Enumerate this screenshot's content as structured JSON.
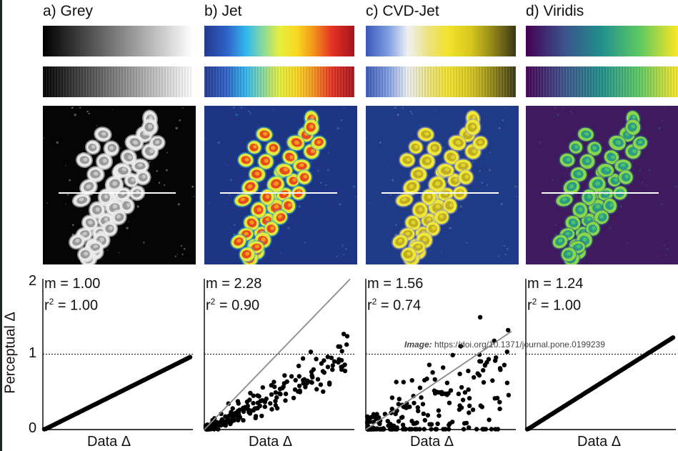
{
  "colors": {
    "frame": "#1f2427",
    "figure_bg": "#ffffff",
    "points": "#000000",
    "fit_line": "#8a8a8a",
    "reference_line": "#000000"
  },
  "panels": [
    {
      "title": "a) Grey",
      "colormap": "grey",
      "stats": {
        "m": "m = 1.00",
        "r2_prefix": "r",
        "r2_sup": "2",
        "r2_value": " = 1.00"
      },
      "xlabel": "Data Δ"
    },
    {
      "title": "b) Jet",
      "colormap": "jet",
      "stats": {
        "m": "m = 2.28",
        "r2_prefix": "r",
        "r2_sup": "2",
        "r2_value": " = 0.90"
      },
      "xlabel": "Data Δ"
    },
    {
      "title": "c) CVD-Jet",
      "colormap": "cvd-jet",
      "stats": {
        "m": "m = 1.56",
        "r2_prefix": "r",
        "r2_sup": "2",
        "r2_value": " = 0.74"
      },
      "xlabel": "Data Δ"
    },
    {
      "title": "d) Viridis",
      "colormap": "viridis",
      "stats": {
        "m": "m = 1.24",
        "r2_prefix": "r",
        "r2_sup": "2",
        "r2_value": " = 1.00"
      },
      "xlabel": "Data Δ"
    }
  ],
  "yaxis": {
    "label": "Perceptual Δ",
    "ticks": [
      "2",
      "1",
      "0"
    ]
  },
  "credit": {
    "prefix": "Image:",
    "url": "https://doi.org/10.1371/journal.pone.0199239"
  },
  "chart_data": [
    {
      "type": "scatter",
      "title": "a) Grey",
      "xlabel": "Data Δ",
      "ylabel": "Perceptual Δ",
      "ylim": [
        0,
        2
      ],
      "slope": 1.0,
      "r2": 1.0,
      "reference_y": 1,
      "grid": false
    },
    {
      "type": "scatter",
      "title": "b) Jet",
      "xlabel": "Data Δ",
      "ylabel": "Perceptual Δ",
      "ylim": [
        0,
        2
      ],
      "slope": 2.28,
      "r2": 0.9,
      "reference_y": 1,
      "grid": false
    },
    {
      "type": "scatter",
      "title": "c) CVD-Jet",
      "xlabel": "Data Δ",
      "ylabel": "Perceptual Δ",
      "ylim": [
        0,
        2
      ],
      "slope": 1.56,
      "r2": 0.74,
      "reference_y": 1,
      "grid": false
    },
    {
      "type": "scatter",
      "title": "d) Viridis",
      "xlabel": "Data Δ",
      "ylabel": "Perceptual Δ",
      "ylim": [
        0,
        2
      ],
      "slope": 1.24,
      "r2": 1.0,
      "reference_y": 1,
      "grid": false
    }
  ]
}
